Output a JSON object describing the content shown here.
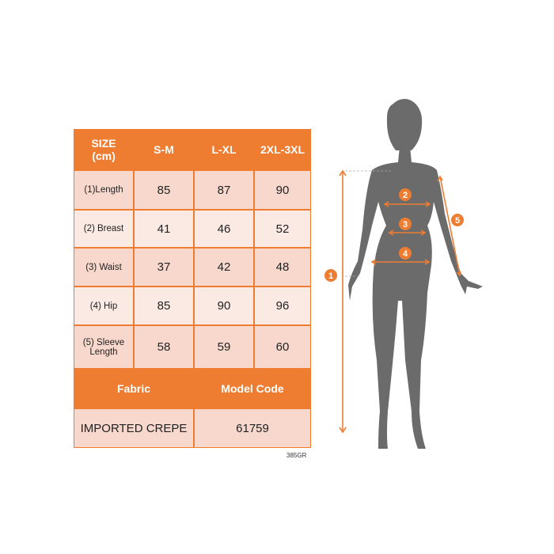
{
  "table": {
    "header": [
      "SIZE\n(cm)",
      "S-M",
      "L-XL",
      "2XL-3XL"
    ],
    "rows": [
      {
        "label": "(1)Length",
        "values": [
          "85",
          "87",
          "90"
        ]
      },
      {
        "label": "(2) Breast",
        "values": [
          "41",
          "46",
          "52"
        ]
      },
      {
        "label": "(3) Waist",
        "values": [
          "37",
          "42",
          "48"
        ]
      },
      {
        "label": "(4) Hip",
        "values": [
          "85",
          "90",
          "96"
        ]
      },
      {
        "label": "(5) Sleeve\nLength",
        "values": [
          "58",
          "59",
          "60"
        ]
      }
    ],
    "fabric_header": "Fabric",
    "model_code_header": "Model Code",
    "fabric": "IMPORTED CREPE",
    "model_code": "61759"
  },
  "product_code": "385GR",
  "diagram": {
    "markers": [
      "1",
      "2",
      "3",
      "4",
      "5"
    ]
  },
  "colors": {
    "accent": "#ee7d32",
    "cell_dark": "#f8d8cd",
    "cell_light": "#fbe9e3",
    "silhouette": "#6b6b6b"
  }
}
